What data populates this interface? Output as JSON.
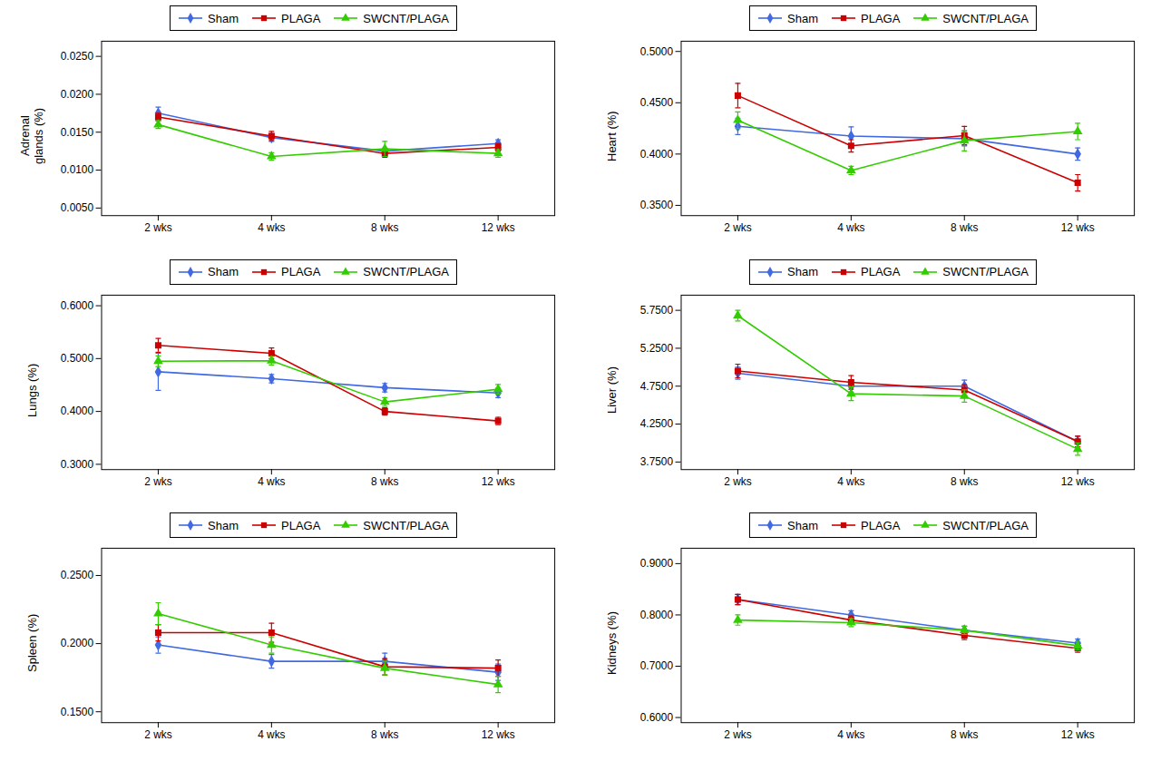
{
  "chart_data": [
    {
      "type": "line",
      "ylabel": "Adrenal\nglands (%)",
      "categories": [
        "2 wks",
        "4 wks",
        "8 wks",
        "12 wks"
      ],
      "ylim": [
        0.004,
        0.027
      ],
      "yticks": [
        {
          "value": 0.005,
          "label": "0.0050"
        },
        {
          "value": 0.01,
          "label": "0.0100"
        },
        {
          "value": 0.015,
          "label": "0.0150"
        },
        {
          "value": 0.02,
          "label": "0.0200"
        },
        {
          "value": 0.025,
          "label": "0.0250"
        }
      ],
      "grid": false,
      "legend": "top",
      "series": [
        {
          "name": "Sham",
          "color": "#4169E1",
          "marker": "diamond",
          "values": [
            0.0175,
            0.0143,
            0.0125,
            0.0135
          ],
          "errors": [
            0.0008,
            0.0005,
            0.0004,
            0.0005
          ]
        },
        {
          "name": "PLAGA",
          "color": "#CC0000",
          "marker": "square",
          "values": [
            0.017,
            0.0145,
            0.0122,
            0.013
          ],
          "errors": [
            0.0005,
            0.0006,
            0.0005,
            0.0005
          ]
        },
        {
          "name": "SWCNT/PLAGA",
          "color": "#33CC00",
          "marker": "triangle",
          "values": [
            0.016,
            0.0118,
            0.0128,
            0.0122
          ],
          "errors": [
            0.0005,
            0.0005,
            0.001,
            0.0005
          ]
        }
      ]
    },
    {
      "type": "line",
      "ylabel": "Heart (%)",
      "categories": [
        "2 wks",
        "4 wks",
        "8 wks",
        "12 wks"
      ],
      "ylim": [
        0.34,
        0.51
      ],
      "yticks": [
        {
          "value": 0.35,
          "label": "0.3500"
        },
        {
          "value": 0.4,
          "label": "0.4000"
        },
        {
          "value": 0.45,
          "label": "0.4500"
        },
        {
          "value": 0.5,
          "label": "0.5000"
        }
      ],
      "grid": false,
      "legend": "top",
      "series": [
        {
          "name": "Sham",
          "color": "#4169E1",
          "marker": "diamond",
          "values": [
            0.427,
            0.4175,
            0.415,
            0.4
          ],
          "errors": [
            0.008,
            0.009,
            0.007,
            0.006
          ]
        },
        {
          "name": "PLAGA",
          "color": "#CC0000",
          "marker": "square",
          "values": [
            0.457,
            0.408,
            0.418,
            0.372
          ],
          "errors": [
            0.012,
            0.006,
            0.009,
            0.008
          ]
        },
        {
          "name": "SWCNT/PLAGA",
          "color": "#33CC00",
          "marker": "triangle",
          "values": [
            0.433,
            0.384,
            0.413,
            0.422
          ],
          "errors": [
            0.008,
            0.004,
            0.01,
            0.008
          ]
        }
      ]
    },
    {
      "type": "line",
      "ylabel": "Lungs (%)",
      "categories": [
        "2 wks",
        "4 wks",
        "8 wks",
        "12 wks"
      ],
      "ylim": [
        0.29,
        0.62
      ],
      "yticks": [
        {
          "value": 0.3,
          "label": "0.3000"
        },
        {
          "value": 0.4,
          "label": "0.4000"
        },
        {
          "value": 0.5,
          "label": "0.5000"
        },
        {
          "value": 0.6,
          "label": "0.6000"
        }
      ],
      "grid": false,
      "legend": "top",
      "series": [
        {
          "name": "Sham",
          "color": "#4169E1",
          "marker": "diamond",
          "values": [
            0.475,
            0.462,
            0.445,
            0.435
          ],
          "errors": [
            0.035,
            0.008,
            0.008,
            0.009
          ]
        },
        {
          "name": "PLAGA",
          "color": "#CC0000",
          "marker": "square",
          "values": [
            0.525,
            0.51,
            0.4,
            0.382
          ],
          "errors": [
            0.013,
            0.01,
            0.007,
            0.007
          ]
        },
        {
          "name": "SWCNT/PLAGA",
          "color": "#33CC00",
          "marker": "triangle",
          "values": [
            0.495,
            0.496,
            0.418,
            0.442
          ],
          "errors": [
            0.01,
            0.008,
            0.008,
            0.009
          ]
        }
      ]
    },
    {
      "type": "line",
      "ylabel": "Liver (%)",
      "categories": [
        "2 wks",
        "4 wks",
        "8 wks",
        "12 wks"
      ],
      "ylim": [
        3.65,
        5.95
      ],
      "yticks": [
        {
          "value": 3.75,
          "label": "3.7500"
        },
        {
          "value": 4.25,
          "label": "4.2500"
        },
        {
          "value": 4.75,
          "label": "4.7500"
        },
        {
          "value": 5.25,
          "label": "5.2500"
        },
        {
          "value": 5.75,
          "label": "5.7500"
        }
      ],
      "grid": false,
      "legend": "top",
      "series": [
        {
          "name": "Sham",
          "color": "#4169E1",
          "marker": "diamond",
          "values": [
            4.92,
            4.75,
            4.75,
            4.02
          ],
          "errors": [
            0.08,
            0.08,
            0.08,
            0.07
          ]
        },
        {
          "name": "PLAGA",
          "color": "#CC0000",
          "marker": "square",
          "values": [
            4.95,
            4.8,
            4.7,
            4.02
          ],
          "errors": [
            0.09,
            0.09,
            0.07,
            0.07
          ]
        },
        {
          "name": "SWCNT/PLAGA",
          "color": "#33CC00",
          "marker": "triangle",
          "values": [
            5.68,
            4.65,
            4.62,
            3.92
          ],
          "errors": [
            0.07,
            0.09,
            0.08,
            0.08
          ]
        }
      ]
    },
    {
      "type": "line",
      "ylabel": "Spleen (%)",
      "categories": [
        "2 wks",
        "4 wks",
        "8 wks",
        "12 wks"
      ],
      "ylim": [
        0.142,
        0.27
      ],
      "yticks": [
        {
          "value": 0.15,
          "label": "0.1500"
        },
        {
          "value": 0.2,
          "label": "0.2000"
        },
        {
          "value": 0.25,
          "label": "0.2500"
        }
      ],
      "grid": false,
      "legend": "top",
      "series": [
        {
          "name": "Sham",
          "color": "#4169E1",
          "marker": "diamond",
          "values": [
            0.199,
            0.187,
            0.187,
            0.179
          ],
          "errors": [
            0.006,
            0.005,
            0.006,
            0.006
          ]
        },
        {
          "name": "PLAGA",
          "color": "#CC0000",
          "marker": "square",
          "values": [
            0.208,
            0.208,
            0.183,
            0.182
          ],
          "errors": [
            0.006,
            0.007,
            0.006,
            0.006
          ]
        },
        {
          "name": "SWCNT/PLAGA",
          "color": "#33CC00",
          "marker": "triangle",
          "values": [
            0.222,
            0.199,
            0.182,
            0.17
          ],
          "errors": [
            0.008,
            0.006,
            0.005,
            0.006
          ]
        }
      ]
    },
    {
      "type": "line",
      "ylabel": "Kidneys (%)",
      "categories": [
        "2 wks",
        "4 wks",
        "8 wks",
        "12 wks"
      ],
      "ylim": [
        0.59,
        0.93
      ],
      "yticks": [
        {
          "value": 0.6,
          "label": "0.6000"
        },
        {
          "value": 0.7,
          "label": "0.7000"
        },
        {
          "value": 0.8,
          "label": "0.8000"
        },
        {
          "value": 0.9,
          "label": "0.9000"
        }
      ],
      "grid": false,
      "legend": "top",
      "series": [
        {
          "name": "Sham",
          "color": "#4169E1",
          "marker": "diamond",
          "values": [
            0.83,
            0.8,
            0.77,
            0.745
          ],
          "errors": [
            0.01,
            0.008,
            0.008,
            0.008
          ]
        },
        {
          "name": "PLAGA",
          "color": "#CC0000",
          "marker": "square",
          "values": [
            0.83,
            0.79,
            0.76,
            0.735
          ],
          "errors": [
            0.01,
            0.008,
            0.008,
            0.008
          ]
        },
        {
          "name": "SWCNT/PLAGA",
          "color": "#33CC00",
          "marker": "triangle",
          "values": [
            0.79,
            0.785,
            0.77,
            0.74
          ],
          "errors": [
            0.01,
            0.008,
            0.008,
            0.008
          ]
        }
      ]
    }
  ]
}
